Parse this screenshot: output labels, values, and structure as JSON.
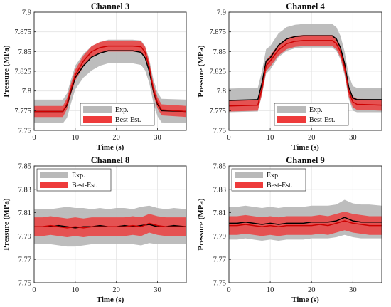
{
  "chart_data": [
    {
      "type": "area",
      "title": "Channel 3",
      "xlabel": "Time (s)",
      "ylabel": "Pressure (MPa)",
      "xlim": [
        0,
        37
      ],
      "ylim": [
        7.75,
        7.9
      ],
      "xticks": [
        0,
        10,
        20,
        30
      ],
      "yticks": [
        7.75,
        7.775,
        7.8,
        7.825,
        7.85,
        7.875,
        7.9
      ],
      "ytick_labels": [
        "7.75",
        "7.775",
        "7.8",
        "7.825",
        "7.85",
        "7.875",
        "7.9"
      ],
      "grid": true,
      "legend_position": "bottom-center",
      "legend_entries": [
        "Exp.",
        "Best-Est."
      ],
      "colors": {
        "exp_band": "#b9b9b9",
        "best_band": "#ee3b3b",
        "exp_line": "#000000",
        "best_line": "#cc0000"
      },
      "x": [
        0,
        7,
        8,
        9,
        10,
        12,
        14,
        16,
        18,
        20,
        22,
        24,
        26,
        27,
        28,
        29,
        30,
        31,
        37
      ],
      "series": [
        {
          "name": "Exp.",
          "mean": [
            7.774,
            7.774,
            7.782,
            7.8,
            7.817,
            7.832,
            7.843,
            7.848,
            7.851,
            7.851,
            7.851,
            7.851,
            7.849,
            7.842,
            7.825,
            7.8,
            7.783,
            7.775,
            7.774
          ],
          "lower": [
            7.759,
            7.759,
            7.766,
            7.785,
            7.802,
            7.817,
            7.826,
            7.832,
            7.835,
            7.835,
            7.835,
            7.835,
            7.833,
            7.826,
            7.81,
            7.785,
            7.768,
            7.76,
            7.759
          ],
          "upper": [
            7.789,
            7.789,
            7.797,
            7.815,
            7.832,
            7.847,
            7.857,
            7.862,
            7.865,
            7.865,
            7.865,
            7.865,
            7.864,
            7.857,
            7.84,
            7.815,
            7.798,
            7.79,
            7.789
          ]
        },
        {
          "name": "Best-Est.",
          "mean": [
            7.774,
            7.774,
            7.784,
            7.803,
            7.82,
            7.838,
            7.85,
            7.855,
            7.857,
            7.857,
            7.857,
            7.857,
            7.856,
            7.849,
            7.83,
            7.802,
            7.785,
            7.776,
            7.774
          ],
          "lower": [
            7.767,
            7.767,
            7.777,
            7.796,
            7.813,
            7.831,
            7.843,
            7.848,
            7.85,
            7.85,
            7.85,
            7.85,
            7.849,
            7.842,
            7.823,
            7.795,
            7.778,
            7.769,
            7.767
          ],
          "upper": [
            7.781,
            7.781,
            7.791,
            7.81,
            7.827,
            7.845,
            7.857,
            7.862,
            7.864,
            7.864,
            7.864,
            7.864,
            7.863,
            7.856,
            7.837,
            7.809,
            7.792,
            7.783,
            7.781
          ]
        }
      ]
    },
    {
      "type": "area",
      "title": "Channel 4",
      "xlabel": "Time (s)",
      "ylabel": "Pressure (MPa)",
      "xlim": [
        0,
        37
      ],
      "ylim": [
        7.75,
        7.9
      ],
      "xticks": [
        0,
        10,
        20,
        30
      ],
      "yticks": [
        7.75,
        7.775,
        7.8,
        7.825,
        7.85,
        7.875,
        7.9
      ],
      "ytick_labels": [
        "7.75",
        "7.775",
        "7.8",
        "7.825",
        "7.85",
        "7.875",
        "7.9"
      ],
      "grid": true,
      "legend_position": "bottom-center",
      "legend_entries": [
        "Exp.",
        "Best-Est."
      ],
      "colors": {
        "exp_band": "#b9b9b9",
        "best_band": "#ee3b3b",
        "exp_line": "#000000",
        "best_line": "#cc0000"
      },
      "x": [
        0,
        7,
        8,
        9,
        10,
        12,
        14,
        16,
        18,
        20,
        22,
        24,
        25,
        26,
        27,
        28,
        29,
        30,
        31,
        37
      ],
      "series": [
        {
          "name": "Exp.",
          "mean": [
            7.788,
            7.789,
            7.81,
            7.838,
            7.842,
            7.858,
            7.866,
            7.869,
            7.87,
            7.87,
            7.87,
            7.87,
            7.87,
            7.866,
            7.855,
            7.835,
            7.805,
            7.791,
            7.789,
            7.789
          ],
          "lower": [
            7.773,
            7.774,
            7.795,
            7.822,
            7.827,
            7.843,
            7.851,
            7.854,
            7.855,
            7.855,
            7.855,
            7.855,
            7.855,
            7.851,
            7.84,
            7.82,
            7.79,
            7.775,
            7.773,
            7.773
          ],
          "upper": [
            7.803,
            7.804,
            7.825,
            7.853,
            7.857,
            7.873,
            7.881,
            7.884,
            7.885,
            7.885,
            7.885,
            7.885,
            7.885,
            7.881,
            7.87,
            7.85,
            7.82,
            7.806,
            7.804,
            7.804
          ]
        },
        {
          "name": "Best-Est.",
          "mean": [
            7.781,
            7.782,
            7.803,
            7.832,
            7.838,
            7.852,
            7.86,
            7.863,
            7.864,
            7.864,
            7.864,
            7.864,
            7.864,
            7.86,
            7.85,
            7.83,
            7.8,
            7.786,
            7.783,
            7.782
          ],
          "lower": [
            7.774,
            7.775,
            7.796,
            7.825,
            7.831,
            7.845,
            7.853,
            7.856,
            7.857,
            7.857,
            7.857,
            7.857,
            7.857,
            7.853,
            7.843,
            7.823,
            7.793,
            7.779,
            7.776,
            7.775
          ],
          "upper": [
            7.788,
            7.789,
            7.81,
            7.839,
            7.845,
            7.859,
            7.867,
            7.87,
            7.871,
            7.871,
            7.871,
            7.871,
            7.871,
            7.867,
            7.857,
            7.837,
            7.807,
            7.793,
            7.79,
            7.789
          ]
        }
      ]
    },
    {
      "type": "area",
      "title": "Channel 8",
      "xlabel": "Time (s)",
      "ylabel": "Pressure (MPa)",
      "xlim": [
        0,
        37
      ],
      "ylim": [
        7.75,
        7.85
      ],
      "xticks": [
        0,
        10,
        20,
        30
      ],
      "yticks": [
        7.75,
        7.77,
        7.79,
        7.81,
        7.83,
        7.85
      ],
      "ytick_labels": [
        "7.75",
        "7.77",
        "7.79",
        "7.81",
        "7.83",
        "7.85"
      ],
      "grid": true,
      "legend_position": "top-left",
      "legend_entries": [
        "Exp.",
        "Best-Est."
      ],
      "colors": {
        "exp_band": "#b9b9b9",
        "best_band": "#ee3b3b",
        "exp_line": "#000000",
        "best_line": "#cc0000"
      },
      "x": [
        0,
        2,
        4,
        6,
        8,
        10,
        12,
        14,
        16,
        18,
        20,
        22,
        24,
        26,
        28,
        30,
        32,
        34,
        37
      ],
      "series": [
        {
          "name": "Exp.",
          "mean": [
            7.798,
            7.798,
            7.798,
            7.799,
            7.798,
            7.797,
            7.798,
            7.798,
            7.799,
            7.798,
            7.798,
            7.799,
            7.798,
            7.799,
            7.8,
            7.798,
            7.798,
            7.799,
            7.798
          ],
          "lower": [
            7.783,
            7.783,
            7.783,
            7.782,
            7.781,
            7.781,
            7.782,
            7.783,
            7.783,
            7.783,
            7.783,
            7.783,
            7.783,
            7.782,
            7.784,
            7.783,
            7.783,
            7.783,
            7.783
          ],
          "upper": [
            7.813,
            7.813,
            7.813,
            7.814,
            7.815,
            7.814,
            7.814,
            7.813,
            7.814,
            7.813,
            7.814,
            7.814,
            7.813,
            7.815,
            7.816,
            7.814,
            7.813,
            7.814,
            7.813
          ]
        },
        {
          "name": "Best-Est.",
          "mean": [
            7.798,
            7.798,
            7.799,
            7.798,
            7.797,
            7.798,
            7.797,
            7.798,
            7.798,
            7.798,
            7.798,
            7.798,
            7.799,
            7.798,
            7.801,
            7.799,
            7.798,
            7.798,
            7.798
          ],
          "lower": [
            7.79,
            7.79,
            7.791,
            7.79,
            7.789,
            7.79,
            7.789,
            7.79,
            7.79,
            7.79,
            7.79,
            7.79,
            7.791,
            7.79,
            7.793,
            7.791,
            7.79,
            7.79,
            7.79
          ],
          "upper": [
            7.806,
            7.806,
            7.807,
            7.806,
            7.805,
            7.806,
            7.805,
            7.806,
            7.806,
            7.806,
            7.806,
            7.806,
            7.807,
            7.806,
            7.809,
            7.807,
            7.806,
            7.806,
            7.806
          ]
        }
      ]
    },
    {
      "type": "area",
      "title": "Channel 9",
      "xlabel": "Time (s)",
      "ylabel": "Pressure (MPa)",
      "xlim": [
        0,
        37
      ],
      "ylim": [
        7.75,
        7.85
      ],
      "xticks": [
        0,
        10,
        20,
        30
      ],
      "yticks": [
        7.75,
        7.77,
        7.79,
        7.81,
        7.83,
        7.85
      ],
      "ytick_labels": [
        "7.75",
        "7.77",
        "7.79",
        "7.81",
        "7.83",
        "7.85"
      ],
      "grid": true,
      "legend_position": "top-left",
      "legend_entries": [
        "Exp.",
        "Best-Est."
      ],
      "colors": {
        "exp_band": "#b9b9b9",
        "best_band": "#ee3b3b",
        "exp_line": "#000000",
        "best_line": "#cc0000"
      },
      "x": [
        0,
        2,
        4,
        6,
        8,
        10,
        12,
        14,
        16,
        18,
        20,
        22,
        24,
        26,
        28,
        30,
        32,
        34,
        37
      ],
      "series": [
        {
          "name": "Exp.",
          "mean": [
            7.801,
            7.801,
            7.802,
            7.801,
            7.8,
            7.801,
            7.8,
            7.801,
            7.801,
            7.801,
            7.802,
            7.802,
            7.802,
            7.803,
            7.806,
            7.803,
            7.802,
            7.802,
            7.802
          ],
          "lower": [
            7.787,
            7.787,
            7.788,
            7.787,
            7.786,
            7.787,
            7.786,
            7.787,
            7.787,
            7.787,
            7.788,
            7.788,
            7.788,
            7.789,
            7.791,
            7.789,
            7.788,
            7.788,
            7.788
          ],
          "upper": [
            7.815,
            7.815,
            7.816,
            7.815,
            7.814,
            7.815,
            7.814,
            7.815,
            7.815,
            7.815,
            7.816,
            7.816,
            7.816,
            7.817,
            7.821,
            7.818,
            7.817,
            7.817,
            7.816
          ]
        },
        {
          "name": "Best-Est.",
          "mean": [
            7.799,
            7.799,
            7.8,
            7.799,
            7.798,
            7.799,
            7.798,
            7.799,
            7.799,
            7.799,
            7.799,
            7.8,
            7.799,
            7.801,
            7.803,
            7.801,
            7.8,
            7.799,
            7.799
          ],
          "lower": [
            7.791,
            7.791,
            7.792,
            7.791,
            7.79,
            7.791,
            7.79,
            7.791,
            7.791,
            7.791,
            7.791,
            7.792,
            7.791,
            7.793,
            7.795,
            7.793,
            7.792,
            7.791,
            7.791
          ],
          "upper": [
            7.807,
            7.807,
            7.808,
            7.807,
            7.806,
            7.807,
            7.806,
            7.807,
            7.807,
            7.807,
            7.807,
            7.808,
            7.807,
            7.809,
            7.811,
            7.809,
            7.808,
            7.807,
            7.807
          ]
        }
      ]
    }
  ]
}
